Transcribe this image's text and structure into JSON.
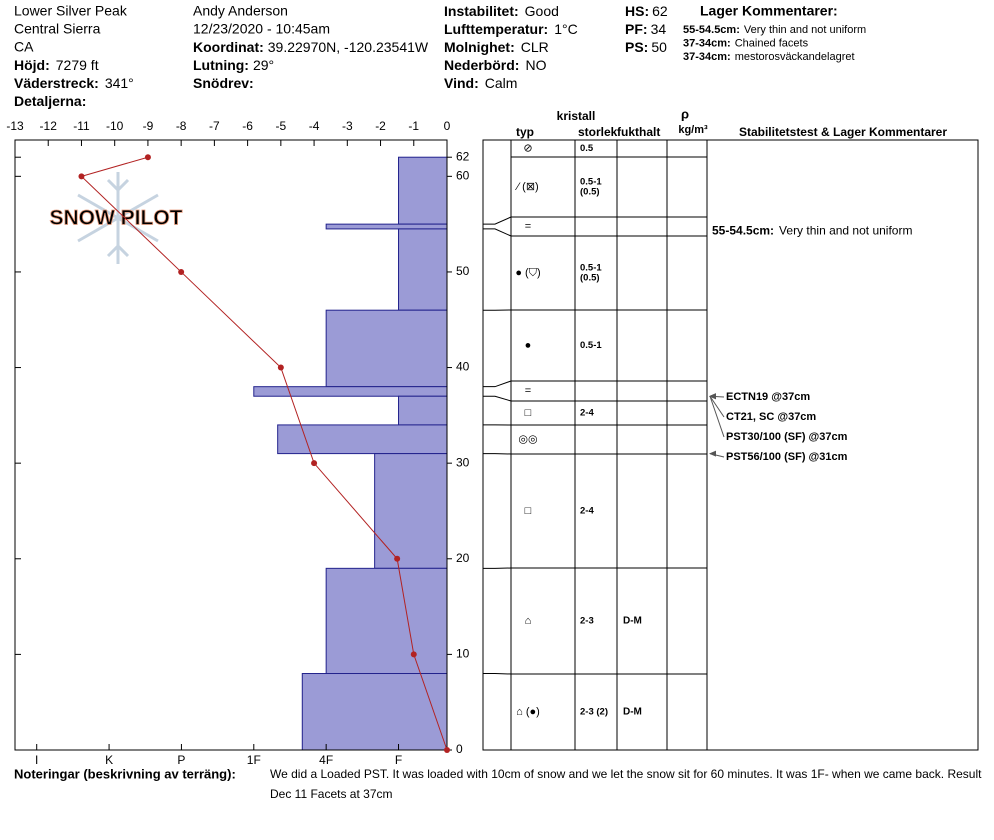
{
  "header": {
    "site": [
      "Lower Silver Peak",
      "Central Sierra",
      "CA"
    ],
    "site_fields": [
      {
        "label": "Höjd:",
        "value": "7279 ft"
      },
      {
        "label": "Väderstreck:",
        "value": "341°"
      },
      {
        "label": "Detaljerna:"
      }
    ],
    "observer": [
      "Andy Anderson",
      "12/23/2020 - 10:45am"
    ],
    "observer_fields": [
      {
        "label": "Koordinat:",
        "value": "39.22970N, -120.23541W"
      },
      {
        "label": "Lutning:",
        "value": "29°"
      },
      {
        "label": "Snödrev:"
      }
    ],
    "conditions": [
      {
        "label": "Instabilitet:",
        "value": "Good"
      },
      {
        "label": "Lufttemperatur:",
        "value": "1°C"
      },
      {
        "label": "Molnighet:",
        "value": "CLR"
      },
      {
        "label": "Nederbörd:",
        "value": "NO"
      },
      {
        "label": "Vind:",
        "value": "Calm"
      }
    ],
    "pit": [
      {
        "label": "HS:",
        "value": 62
      },
      {
        "label": "PF:",
        "value": 34
      },
      {
        "label": "PS:",
        "value": 50
      }
    ],
    "comments_title": "Lager Kommentarer:",
    "comments": [
      {
        "label": "55-54.5cm:",
        "value": "Very thin and not uniform"
      },
      {
        "label": "37-34cm:",
        "value": "Chained facets"
      },
      {
        "label": "37-34cm:",
        "value": "mestorosväckandelagret"
      }
    ]
  },
  "logo": "SNOW PILOT",
  "chart_data": {
    "type": "snow-profile",
    "ylim": [
      0,
      63.8
    ],
    "yticks": [
      0,
      10,
      20,
      30,
      40,
      50,
      60,
      62
    ],
    "temperature": {
      "xlim": [
        -13,
        0
      ],
      "xticks": [
        -13,
        -12,
        -11,
        -10,
        -9,
        -8,
        -7,
        -6,
        -5,
        -4,
        -3,
        -2,
        -1,
        0
      ],
      "color": "#b22222",
      "heights": [
        62,
        60,
        50,
        40,
        30,
        20,
        10,
        0
      ],
      "values": [
        -9,
        -11,
        -8,
        -5,
        -4,
        -1.5,
        -1,
        0
      ]
    },
    "hardness": {
      "xlim": [
        6.3,
        0.33
      ],
      "xticks": [
        {
          "value": 6,
          "label": "I"
        },
        {
          "value": 5,
          "label": "K"
        },
        {
          "value": 4,
          "label": "P"
        },
        {
          "value": 3,
          "label": "1F"
        },
        {
          "value": 2,
          "label": "4F"
        },
        {
          "value": 1,
          "label": "F"
        }
      ],
      "color": "#9b9bd6"
    },
    "layers": [
      {
        "top": 62,
        "bottom": 55,
        "hardness": 1,
        "crystal": "⁄ (⊠)",
        "size": [
          "0.5-1",
          "(0.5)"
        ]
      },
      {
        "top": 55,
        "bottom": 54.5,
        "hardness": 2,
        "crystal": "=",
        "comment": {
          "label": "55-54.5cm:",
          "value": "Very thin and not uniform"
        }
      },
      {
        "top": 54.5,
        "bottom": 46,
        "hardness": 1,
        "crystal": "● (⛉)",
        "size": [
          "0.5-1",
          "(0.5)"
        ]
      },
      {
        "top": 46,
        "bottom": 38,
        "hardness": 2,
        "crystal": "●",
        "size": [
          "0.5-1"
        ]
      },
      {
        "top": 38,
        "bottom": 37,
        "hardness": 3,
        "crystal": "="
      },
      {
        "top": 37,
        "bottom": 34,
        "hardness": 1,
        "crystal": "□",
        "size": [
          "2-4"
        ]
      },
      {
        "top": 34,
        "bottom": 31,
        "hardness": 2.67,
        "crystal": "◎◎"
      },
      {
        "top": 31,
        "bottom": 19,
        "hardness": 1.33,
        "crystal": "□",
        "size": [
          "2-4"
        ]
      },
      {
        "top": 19,
        "bottom": 8,
        "hardness": 2,
        "crystal": "⌂",
        "size": [
          "2-3"
        ],
        "moisture": "D-M"
      },
      {
        "top": 8,
        "bottom": 0,
        "hardness": 2.33,
        "crystal": "⌂ (●)",
        "size": [
          "2-3 (2)"
        ],
        "moisture": "D-M"
      }
    ]
  },
  "table": {
    "headers": {
      "crystal": "kristall",
      "type": "typ",
      "size": "storlek",
      "moisture": "fukthalt",
      "density_symbol": "ρ",
      "density_unit": "kg/m³",
      "comments": "Stabilitetstest & Lager Kommentarer"
    },
    "surface": {
      "crystal": "⊘",
      "size": [
        "0.5"
      ]
    },
    "tests": [
      {
        "text": "ECTN19 @37cm",
        "height": 37
      },
      {
        "text": "CT21, SC @37cm",
        "height": 37
      },
      {
        "text": "PST30/100 (SF) @37cm",
        "height": 37
      },
      {
        "text": "PST56/100 (SF) @31cm",
        "height": 31
      }
    ]
  },
  "notes": {
    "label": "Noteringar (beskrivning av terräng):",
    "lines": [
      "We did a Loaded PST. It was loaded with 10cm of snow and we let the snow sit for 60 minutes. It was 1F- when we came back. Result",
      "Dec 11 Facets at 37cm"
    ]
  }
}
